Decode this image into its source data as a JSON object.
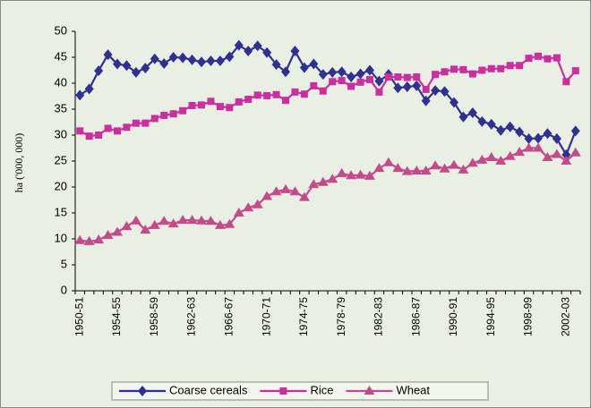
{
  "chart_data": {
    "type": "line",
    "y_label": "ha ('000, 000)",
    "categories": [
      "1950-51",
      null,
      null,
      null,
      "1954-55",
      null,
      null,
      null,
      "1958-59",
      null,
      null,
      null,
      "1962-63",
      null,
      null,
      null,
      "1966-67",
      null,
      null,
      null,
      "1970-71",
      null,
      null,
      null,
      "1974-75",
      null,
      null,
      null,
      "1978-79",
      null,
      null,
      null,
      "1982-83",
      null,
      null,
      null,
      "1986-87",
      null,
      null,
      null,
      "1990-91",
      null,
      null,
      null,
      "1994-95",
      null,
      null,
      null,
      "1998-99",
      null,
      null,
      null,
      "2002-03",
      null
    ],
    "series": [
      {
        "name": "Coarse cereals",
        "color": "#2e3192",
        "marker": "diamond",
        "values": [
          37.7,
          38.9,
          42.4,
          45.5,
          43.7,
          43.4,
          42.1,
          42.9,
          44.7,
          43.8,
          45.0,
          44.9,
          44.5,
          44.1,
          44.3,
          44.3,
          45.1,
          47.3,
          46.2,
          47.2,
          45.9,
          43.6,
          42.2,
          46.2,
          43.0,
          43.7,
          41.7,
          42.1,
          42.2,
          41.2,
          41.8,
          42.5,
          40.4,
          41.7,
          39.1,
          39.3,
          39.5,
          36.6,
          38.6,
          38.4,
          36.3,
          33.5,
          34.3,
          32.6,
          32.1,
          30.9,
          31.6,
          30.6,
          29.3,
          29.4,
          30.3,
          29.3,
          26.2,
          30.8
        ]
      },
      {
        "name": "Rice",
        "color": "#cc2ea0",
        "marker": "square",
        "values": [
          30.8,
          29.8,
          30.0,
          31.3,
          30.8,
          31.5,
          32.3,
          32.3,
          33.2,
          33.8,
          34.1,
          34.7,
          35.7,
          35.8,
          36.5,
          35.5,
          35.3,
          36.4,
          36.9,
          37.7,
          37.6,
          37.8,
          36.7,
          38.3,
          37.9,
          39.5,
          38.5,
          40.3,
          40.5,
          39.4,
          40.2,
          40.7,
          38.3,
          41.2,
          41.2,
          41.1,
          41.2,
          38.8,
          41.7,
          42.2,
          42.7,
          42.6,
          41.8,
          42.5,
          42.8,
          42.8,
          43.4,
          43.4,
          44.8,
          45.2,
          44.7,
          44.9,
          40.3,
          42.4
        ]
      },
      {
        "name": "Wheat",
        "color": "#c44a8c",
        "marker": "triangle",
        "values": [
          9.7,
          9.5,
          9.8,
          10.7,
          11.3,
          12.4,
          13.5,
          11.7,
          12.6,
          13.4,
          12.9,
          13.6,
          13.6,
          13.5,
          13.4,
          12.6,
          12.8,
          15.0,
          16.0,
          16.6,
          18.2,
          19.1,
          19.5,
          19.1,
          18.0,
          20.5,
          20.9,
          21.5,
          22.6,
          22.2,
          22.3,
          22.1,
          23.6,
          24.7,
          23.6,
          23.0,
          23.1,
          23.1,
          24.1,
          23.5,
          24.2,
          23.3,
          24.6,
          25.2,
          25.7,
          25.0,
          25.9,
          26.7,
          27.5,
          27.5,
          25.7,
          26.3,
          25.0,
          26.6
        ]
      }
    ],
    "ylim": [
      0,
      50
    ],
    "yticks": [
      0,
      5,
      10,
      15,
      20,
      25,
      30,
      35,
      40,
      45,
      50
    ],
    "grid": false,
    "legend": "bottom"
  }
}
